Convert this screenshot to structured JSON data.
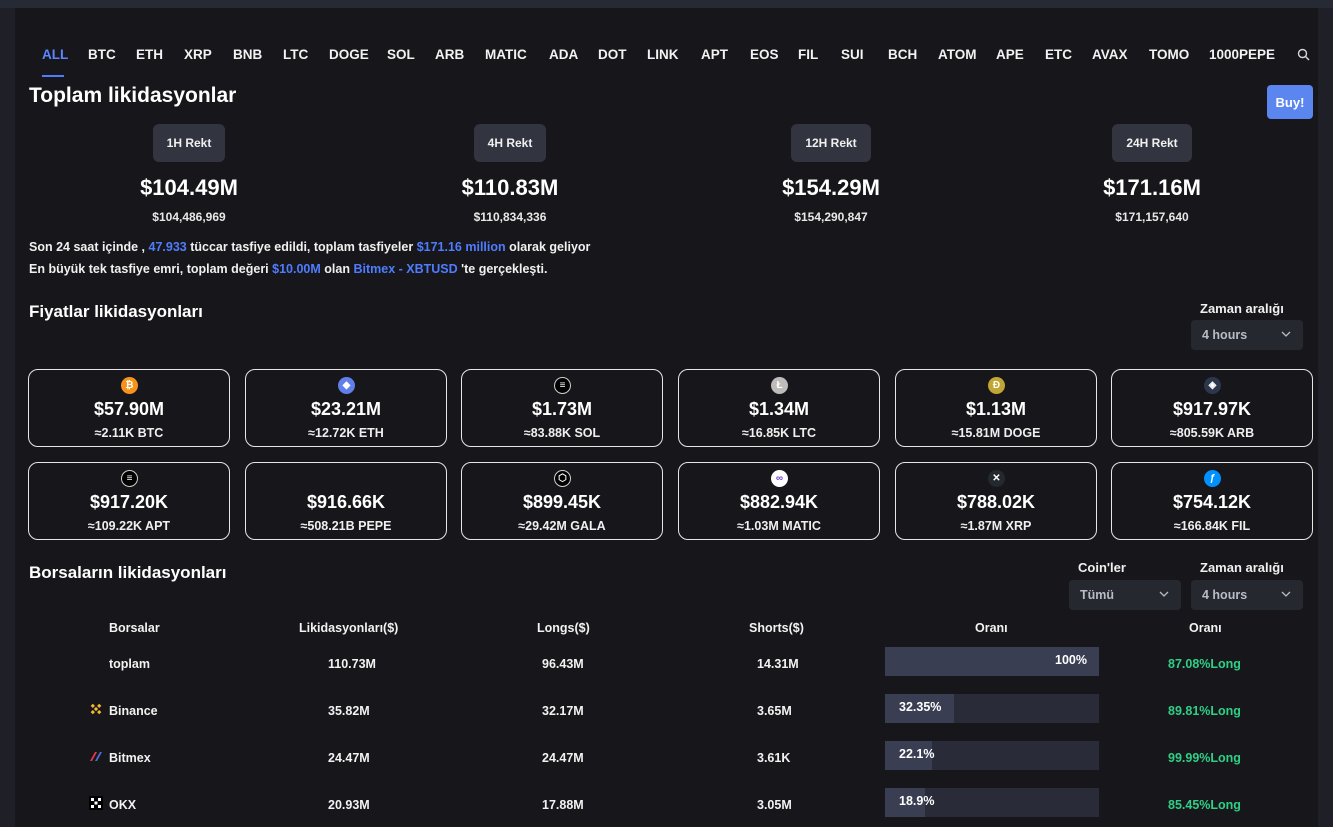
{
  "tabs": [
    "ALL",
    "BTC",
    "ETH",
    "XRP",
    "BNB",
    "LTC",
    "DOGE",
    "SOL",
    "ARB",
    "MATIC",
    "ADA",
    "DOT",
    "LINK",
    "APT",
    "EOS",
    "FIL",
    "SUI",
    "BCH",
    "ATOM",
    "APE",
    "ETC",
    "AVAX",
    "TOMO",
    "1000PEPE"
  ],
  "active_tab": "ALL",
  "total": {
    "title": "Toplam likidasyonlar",
    "buy_label": "Buy!",
    "rekt": [
      {
        "label": "1H Rekt",
        "value": "$104.49M",
        "exact": "$104,486,969"
      },
      {
        "label": "4H Rekt",
        "value": "$110.83M",
        "exact": "$110,834,336"
      },
      {
        "label": "12H Rekt",
        "value": "$154.29M",
        "exact": "$154,290,847"
      },
      {
        "label": "24H Rekt",
        "value": "$171.16M",
        "exact": "$171,157,640"
      }
    ]
  },
  "info": {
    "l1_a": "Son 24 saat içinde ,",
    "l1_traders": "47.933",
    "l1_b": "tüccar tasfiye edildi, toplam tasfiyeler",
    "l1_total": "$171.16 million",
    "l1_c": "olarak geliyor",
    "l2_a": "En büyük tek tasfiye emri, toplam değeri",
    "l2_value": "$10.00M",
    "l2_b": "olan",
    "l2_pair": "Bitmex - XBTUSD",
    "l2_c": "'te gerçekleşti."
  },
  "prices": {
    "title": "Fiyatlar likidasyonları",
    "range_label": "Zaman aralığı",
    "range_value": "4 hours",
    "cards": [
      {
        "icon": "bitcoin-icon",
        "value": "$57.90M",
        "amount": "≈2.11K BTC",
        "color": "#f7931a",
        "glyph": "₿"
      },
      {
        "icon": "ethereum-icon",
        "value": "$23.21M",
        "amount": "≈12.72K ETH",
        "color": "#627eea",
        "glyph": "◆"
      },
      {
        "icon": "solana-icon",
        "value": "$1.73M",
        "amount": "≈83.88K SOL",
        "color": "#000000",
        "glyph": "≡"
      },
      {
        "icon": "litecoin-icon",
        "value": "$1.34M",
        "amount": "≈16.85K LTC",
        "color": "#bfbbbb",
        "glyph": "Ł"
      },
      {
        "icon": "dogecoin-icon",
        "value": "$1.13M",
        "amount": "≈15.81M DOGE",
        "color": "#c2a633",
        "glyph": "Ð"
      },
      {
        "icon": "arbitrum-icon",
        "value": "$917.97K",
        "amount": "≈805.59K ARB",
        "color": "#2d374b",
        "glyph": "◈"
      },
      {
        "icon": "aptos-icon",
        "value": "$917.20K",
        "amount": "≈109.22K APT",
        "color": "#000000",
        "glyph": "≡"
      },
      {
        "icon": "",
        "value": "$916.66K",
        "amount": "≈508.21B PEPE",
        "color": "",
        "glyph": ""
      },
      {
        "icon": "gala-icon",
        "value": "$899.45K",
        "amount": "≈29.42M GALA",
        "color": "#000000",
        "glyph": "⬡"
      },
      {
        "icon": "polygon-icon",
        "value": "$882.94K",
        "amount": "≈1.03M MATIC",
        "color": "#ffffff",
        "glyph": "∞"
      },
      {
        "icon": "xrp-icon",
        "value": "$788.02K",
        "amount": "≈1.87M XRP",
        "color": "#23292f",
        "glyph": "✕"
      },
      {
        "icon": "filecoin-icon",
        "value": "$754.12K",
        "amount": "≈166.84K FIL",
        "color": "#0090ff",
        "glyph": "ƒ"
      }
    ]
  },
  "exchanges": {
    "title": "Borsaların likidasyonları",
    "coins_label": "Coin'ler",
    "coins_value": "Tümü",
    "range_label": "Zaman aralığı",
    "range_value": "4 hours",
    "headers": [
      "Borsalar",
      "Likidasyonları($)",
      "Longs($)",
      "Shorts($)",
      "Oranı",
      "Oranı"
    ],
    "rows": [
      {
        "name": "toplam",
        "icon": "",
        "liq": "110.73M",
        "longs": "96.43M",
        "shorts": "14.31M",
        "share": "100%",
        "share_frac": 1.0,
        "ratio": "87.08%Long"
      },
      {
        "name": "Binance",
        "icon": "binance-icon",
        "liq": "35.82M",
        "longs": "32.17M",
        "shorts": "3.65M",
        "share": "32.35%",
        "share_frac": 0.3235,
        "ratio": "89.81%Long"
      },
      {
        "name": "Bitmex",
        "icon": "bitmex-icon",
        "liq": "24.47M",
        "longs": "24.47M",
        "shorts": "3.61K",
        "share": "22.1%",
        "share_frac": 0.221,
        "ratio": "99.99%Long"
      },
      {
        "name": "OKX",
        "icon": "okx-icon",
        "liq": "20.93M",
        "longs": "17.88M",
        "shorts": "3.05M",
        "share": "18.9%",
        "share_frac": 0.189,
        "ratio": "85.45%Long"
      }
    ]
  }
}
